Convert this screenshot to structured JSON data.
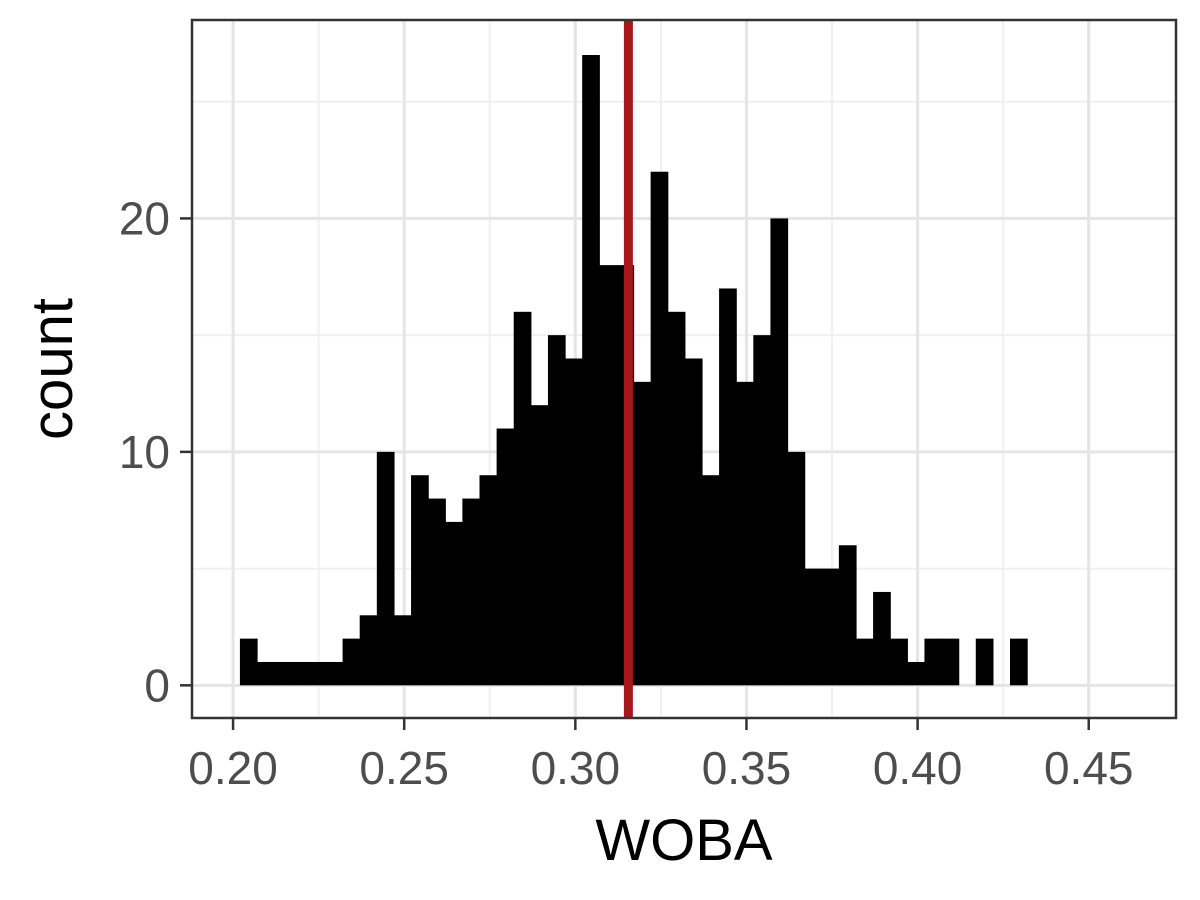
{
  "chart_data": {
    "type": "bar",
    "subtype": "histogram",
    "xlabel": "WOBA",
    "ylabel": "count",
    "xlim": [
      0.188,
      0.4755
    ],
    "ylim": [
      -1.4,
      28.5
    ],
    "x_ticks": [
      0.2,
      0.25,
      0.3,
      0.35,
      0.4,
      0.45
    ],
    "x_tick_labels": [
      "0.20",
      "0.25",
      "0.30",
      "0.35",
      "0.40",
      "0.45"
    ],
    "y_ticks": [
      0,
      10,
      20
    ],
    "y_tick_labels": [
      "0",
      "10",
      "20"
    ],
    "grid": true,
    "bin_width": 0.005,
    "bin_start": 0.202,
    "counts": [
      2,
      1,
      1,
      1,
      1,
      1,
      2,
      3,
      10,
      3,
      9,
      8,
      7,
      8,
      9,
      11,
      16,
      12,
      15,
      14,
      27,
      18,
      18,
      13,
      22,
      16,
      14,
      9,
      17,
      13,
      15,
      20,
      10,
      5,
      5,
      6,
      2,
      4,
      2,
      1,
      2,
      2,
      0,
      2,
      0,
      2
    ],
    "bar_color": "#000000",
    "vline": {
      "x": 0.3155,
      "color": "#a6171c"
    }
  }
}
